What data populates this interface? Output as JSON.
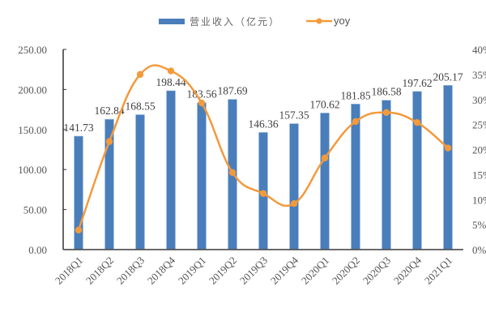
{
  "chart_data": {
    "type": "bar+line",
    "title": "",
    "categories": [
      "2018Q1",
      "2018Q2",
      "2018Q3",
      "2018Q4",
      "2019Q1",
      "2019Q2",
      "2019Q3",
      "2019Q4",
      "2020Q1",
      "2020Q2",
      "2020Q3",
      "2020Q4",
      "2021Q1"
    ],
    "series": [
      {
        "name": "营业收入（亿元）",
        "type": "bar",
        "axis": "left",
        "color": "#4a7ebb",
        "values": [
          141.73,
          162.84,
          168.55,
          198.44,
          183.56,
          187.69,
          146.36,
          157.35,
          170.62,
          181.85,
          186.58,
          197.62,
          205.17
        ],
        "labels": [
          "141.73",
          "162.84",
          "168.55",
          "198.44",
          "183.56",
          "187.69",
          "146.36",
          "157.35",
          "170.62",
          "181.85",
          "186.58",
          "197.62",
          "205.17"
        ]
      },
      {
        "name": "yoy",
        "type": "line",
        "axis": "right",
        "color": "#f39a3c",
        "smooth": true,
        "values": [
          3.9,
          21.6,
          35.0,
          35.7,
          29.3,
          15.4,
          11.2,
          9.2,
          18.3,
          25.6,
          27.4,
          25.4,
          20.3
        ]
      }
    ],
    "left_axis": {
      "range": [
        0,
        250
      ],
      "ticks": [
        0,
        50,
        100,
        150,
        200,
        250
      ],
      "tick_labels": [
        "0.00",
        "50.00",
        "100.00",
        "150.00",
        "200.00",
        "250.00"
      ]
    },
    "right_axis": {
      "range": [
        0,
        40
      ],
      "ticks": [
        0,
        5,
        10,
        15,
        20,
        25,
        30,
        35,
        40
      ],
      "tick_labels": [
        "0%",
        "5%",
        "10%",
        "15%",
        "20%",
        "25%",
        "30%",
        "35%",
        "40%"
      ]
    },
    "xlabel": "",
    "ylabel": "",
    "grid": false,
    "legend_position": "top"
  },
  "legend": {
    "bar_label": "营业收入（亿元）",
    "line_label": "yoy"
  }
}
